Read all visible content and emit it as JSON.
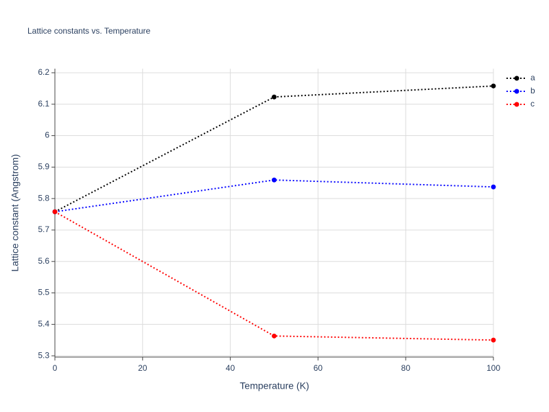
{
  "chart_data": {
    "type": "line",
    "title": "Lattice constants vs. Temperature",
    "x_label": "Temperature (K)",
    "y_label": "Lattice constant (Angstrom)",
    "x": [
      0,
      50,
      100
    ],
    "series": [
      {
        "name": "a",
        "color": "#000000",
        "values": [
          5.758,
          6.123,
          6.158
        ]
      },
      {
        "name": "b",
        "color": "#0000ff",
        "values": [
          5.758,
          5.859,
          5.837
        ]
      },
      {
        "name": "c",
        "color": "#ff0000",
        "values": [
          5.758,
          5.363,
          5.35
        ]
      }
    ],
    "xlim": [
      0,
      100
    ],
    "xticks": [
      0,
      20,
      40,
      60,
      80,
      100
    ],
    "ylim": [
      5.296,
      6.213
    ],
    "yticks": [
      5.3,
      5.4,
      5.5,
      5.6,
      5.7,
      5.8,
      5.9,
      6,
      6.1,
      6.2
    ],
    "grid": true,
    "line_style": "dotted",
    "legend": "right"
  }
}
